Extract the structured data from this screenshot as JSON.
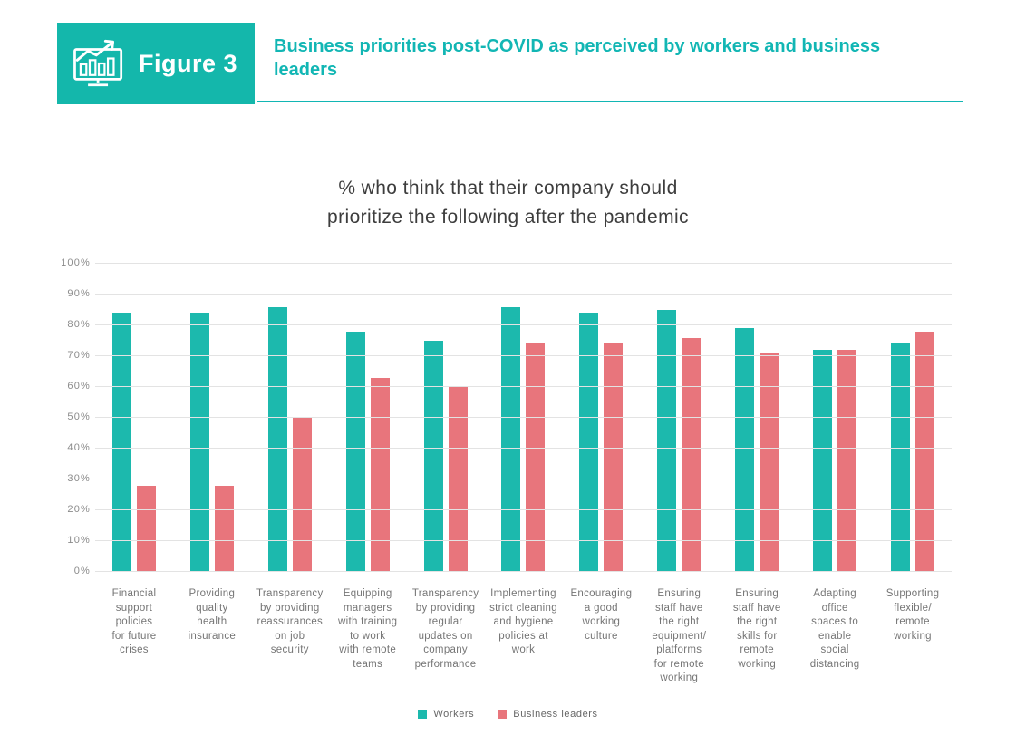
{
  "figure": {
    "badge_label": "Figure 3",
    "title": "Business priorities post-COVID as perceived by workers and business leaders",
    "accent_color": "#12b6b4",
    "badge_color": "#14b7ab"
  },
  "chart_data": {
    "type": "bar",
    "title": "% who think that their company should\nprioritize the following after the pandemic",
    "categories": [
      "Financial\nsupport\npolicies\nfor future\ncrises",
      "Providing\nquality\nhealth\ninsurance",
      "Transparency\nby providing\nreassurances\non job\nsecurity",
      "Equipping\nmanagers\nwith training\nto work\nwith remote\nteams",
      "Transparency\nby providing\nregular\nupdates on\ncompany\nperformance",
      "Implementing\nstrict cleaning\nand hygiene\npolicies at\nwork",
      "Encouraging\na good\nworking\nculture",
      "Ensuring\nstaff have\nthe right\nequipment/\nplatforms\nfor remote\nworking",
      "Ensuring\nstaff have\nthe right\nskills for\nremote\nworking",
      "Adapting\noffice\nspaces to\nenable\nsocial\ndistancing",
      "Supporting\nflexible/\nremote\nworking"
    ],
    "series": [
      {
        "name": "Workers",
        "color": "#1cb9ad",
        "values": [
          84,
          84,
          86,
          78,
          75,
          86,
          84,
          85,
          79,
          72,
          74
        ]
      },
      {
        "name": "Business leaders",
        "color": "#e8757c",
        "values": [
          28,
          28,
          50,
          63,
          60,
          74,
          74,
          76,
          71,
          72,
          78
        ]
      }
    ],
    "y_ticks": [
      "0%",
      "10%",
      "20%",
      "30%",
      "40%",
      "50%",
      "60%",
      "70%",
      "80%",
      "90%",
      "100%"
    ],
    "ylim": [
      0,
      100
    ],
    "grid": true,
    "legend_position": "bottom"
  }
}
